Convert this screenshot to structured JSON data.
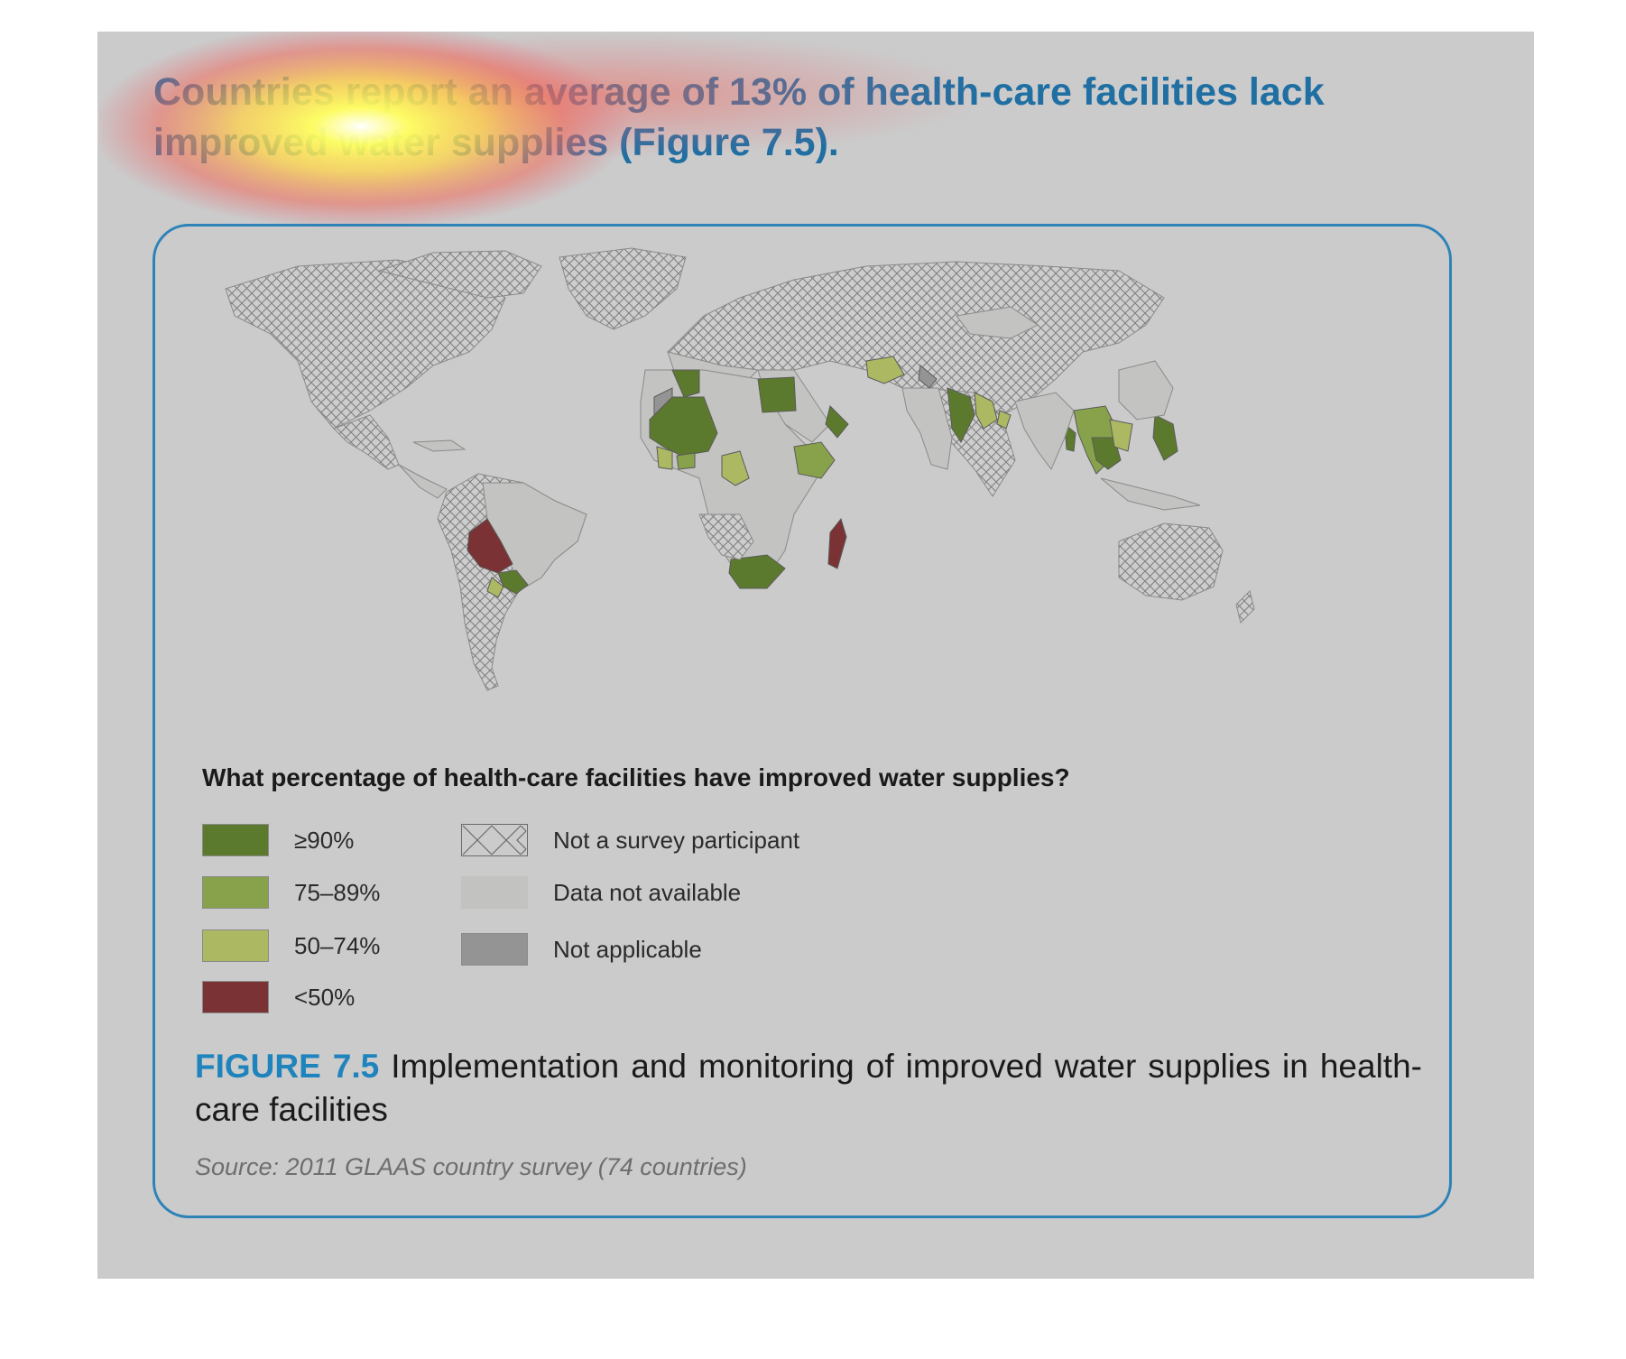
{
  "headline": "Countries report an average of 13% of health-care facilities lack improved water supplies (Figure 7.5).",
  "legend": {
    "title": "What percentage of health-care facilities have improved water supplies?",
    "items": [
      {
        "label": "≥90%",
        "color": "#5c7a2e",
        "pattern": "solid"
      },
      {
        "label": "75–89%",
        "color": "#87a24a",
        "pattern": "solid"
      },
      {
        "label": "50–74%",
        "color": "#adb863",
        "pattern": "solid"
      },
      {
        "label": "<50%",
        "color": "#7a3234",
        "pattern": "solid"
      },
      {
        "label": "Not a survey participant",
        "color": "#cbcbcb",
        "pattern": "crosshatch"
      },
      {
        "label": "Data not available",
        "color": "#c2c2c0",
        "pattern": "solid"
      },
      {
        "label": "Not applicable",
        "color": "#949494",
        "pattern": "solid"
      }
    ]
  },
  "figure": {
    "label": "FIGURE 7.5",
    "caption": "Implementation and monitoring of improved water supplies in health-care facilities",
    "source": "Source: 2011 GLAAS country survey (74 countries)"
  },
  "colors": {
    "accent": "#1f84bd",
    "border": "#2d83b8",
    "background": "#cbcbcb"
  }
}
